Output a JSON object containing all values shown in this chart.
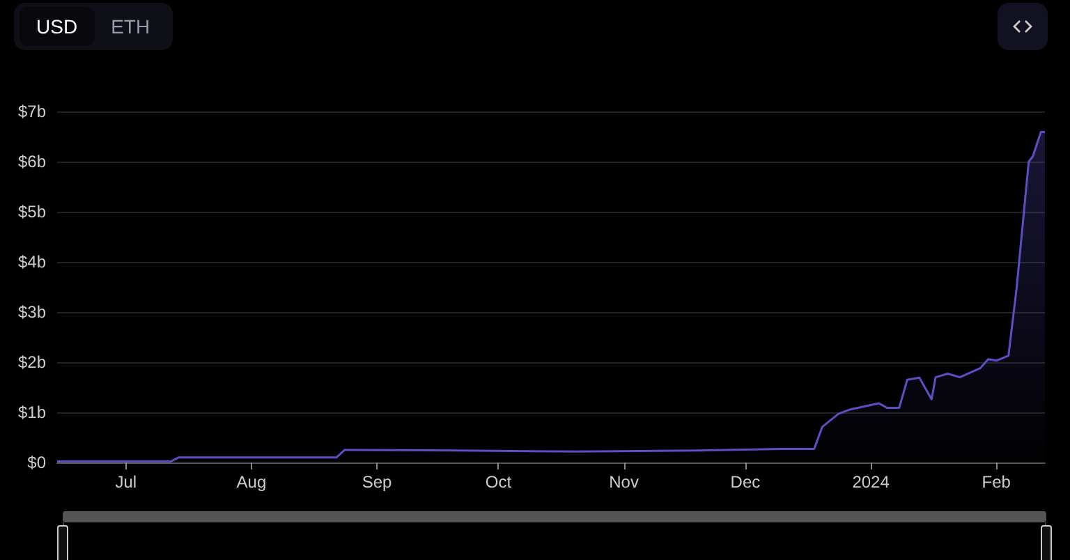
{
  "chart_data": {
    "type": "area",
    "color": "#5b4fc4",
    "annotations": [
      "USD",
      "ETH"
    ],
    "x": [
      "2023-06-14",
      "2023-07-12",
      "2023-07-14",
      "2023-08-22",
      "2023-08-24",
      "2023-09-20",
      "2023-10-20",
      "2023-11-20",
      "2023-12-10",
      "2023-12-18",
      "2023-12-20",
      "2023-12-24",
      "2023-12-27",
      "2024-01-03",
      "2024-01-05",
      "2024-01-08",
      "2024-01-10",
      "2024-01-13",
      "2024-01-16",
      "2024-01-17",
      "2024-01-20",
      "2024-01-23",
      "2024-01-28",
      "2024-01-30",
      "2024-02-01",
      "2024-02-04",
      "2024-02-06",
      "2024-02-09",
      "2024-02-10",
      "2024-02-12",
      "2024-02-13"
    ],
    "values": [
      0.02,
      0.02,
      0.1,
      0.1,
      0.25,
      0.24,
      0.22,
      0.24,
      0.27,
      0.27,
      0.71,
      0.97,
      1.06,
      1.18,
      1.09,
      1.09,
      1.65,
      1.69,
      1.26,
      1.7,
      1.77,
      1.7,
      1.88,
      2.06,
      2.03,
      2.13,
      3.47,
      6.0,
      6.1,
      6.59,
      6.59
    ],
    "xlim": [
      "2023-06-14",
      "2024-02-13"
    ],
    "xticks": [
      {
        "value": "2023-07-01",
        "label": "Jul"
      },
      {
        "value": "2023-08-01",
        "label": "Aug"
      },
      {
        "value": "2023-09-01",
        "label": "Sep"
      },
      {
        "value": "2023-10-01",
        "label": "Oct"
      },
      {
        "value": "2023-11-01",
        "label": "Nov"
      },
      {
        "value": "2023-12-01",
        "label": "Dec"
      },
      {
        "value": "2024-01-01",
        "label": "2024"
      },
      {
        "value": "2024-02-01",
        "label": "Feb"
      }
    ],
    "ylim": [
      0,
      7
    ],
    "yticks": [
      {
        "value": 0,
        "label": "$0"
      },
      {
        "value": 1,
        "label": "$1b"
      },
      {
        "value": 2,
        "label": "$2b"
      },
      {
        "value": 3,
        "label": "$3b"
      },
      {
        "value": 4,
        "label": "$4b"
      },
      {
        "value": 5,
        "label": "$5b"
      },
      {
        "value": 6,
        "label": "$6b"
      },
      {
        "value": 7,
        "label": "$7b"
      }
    ],
    "grid": "y",
    "marker": "none",
    "line_style": "solid"
  }
}
